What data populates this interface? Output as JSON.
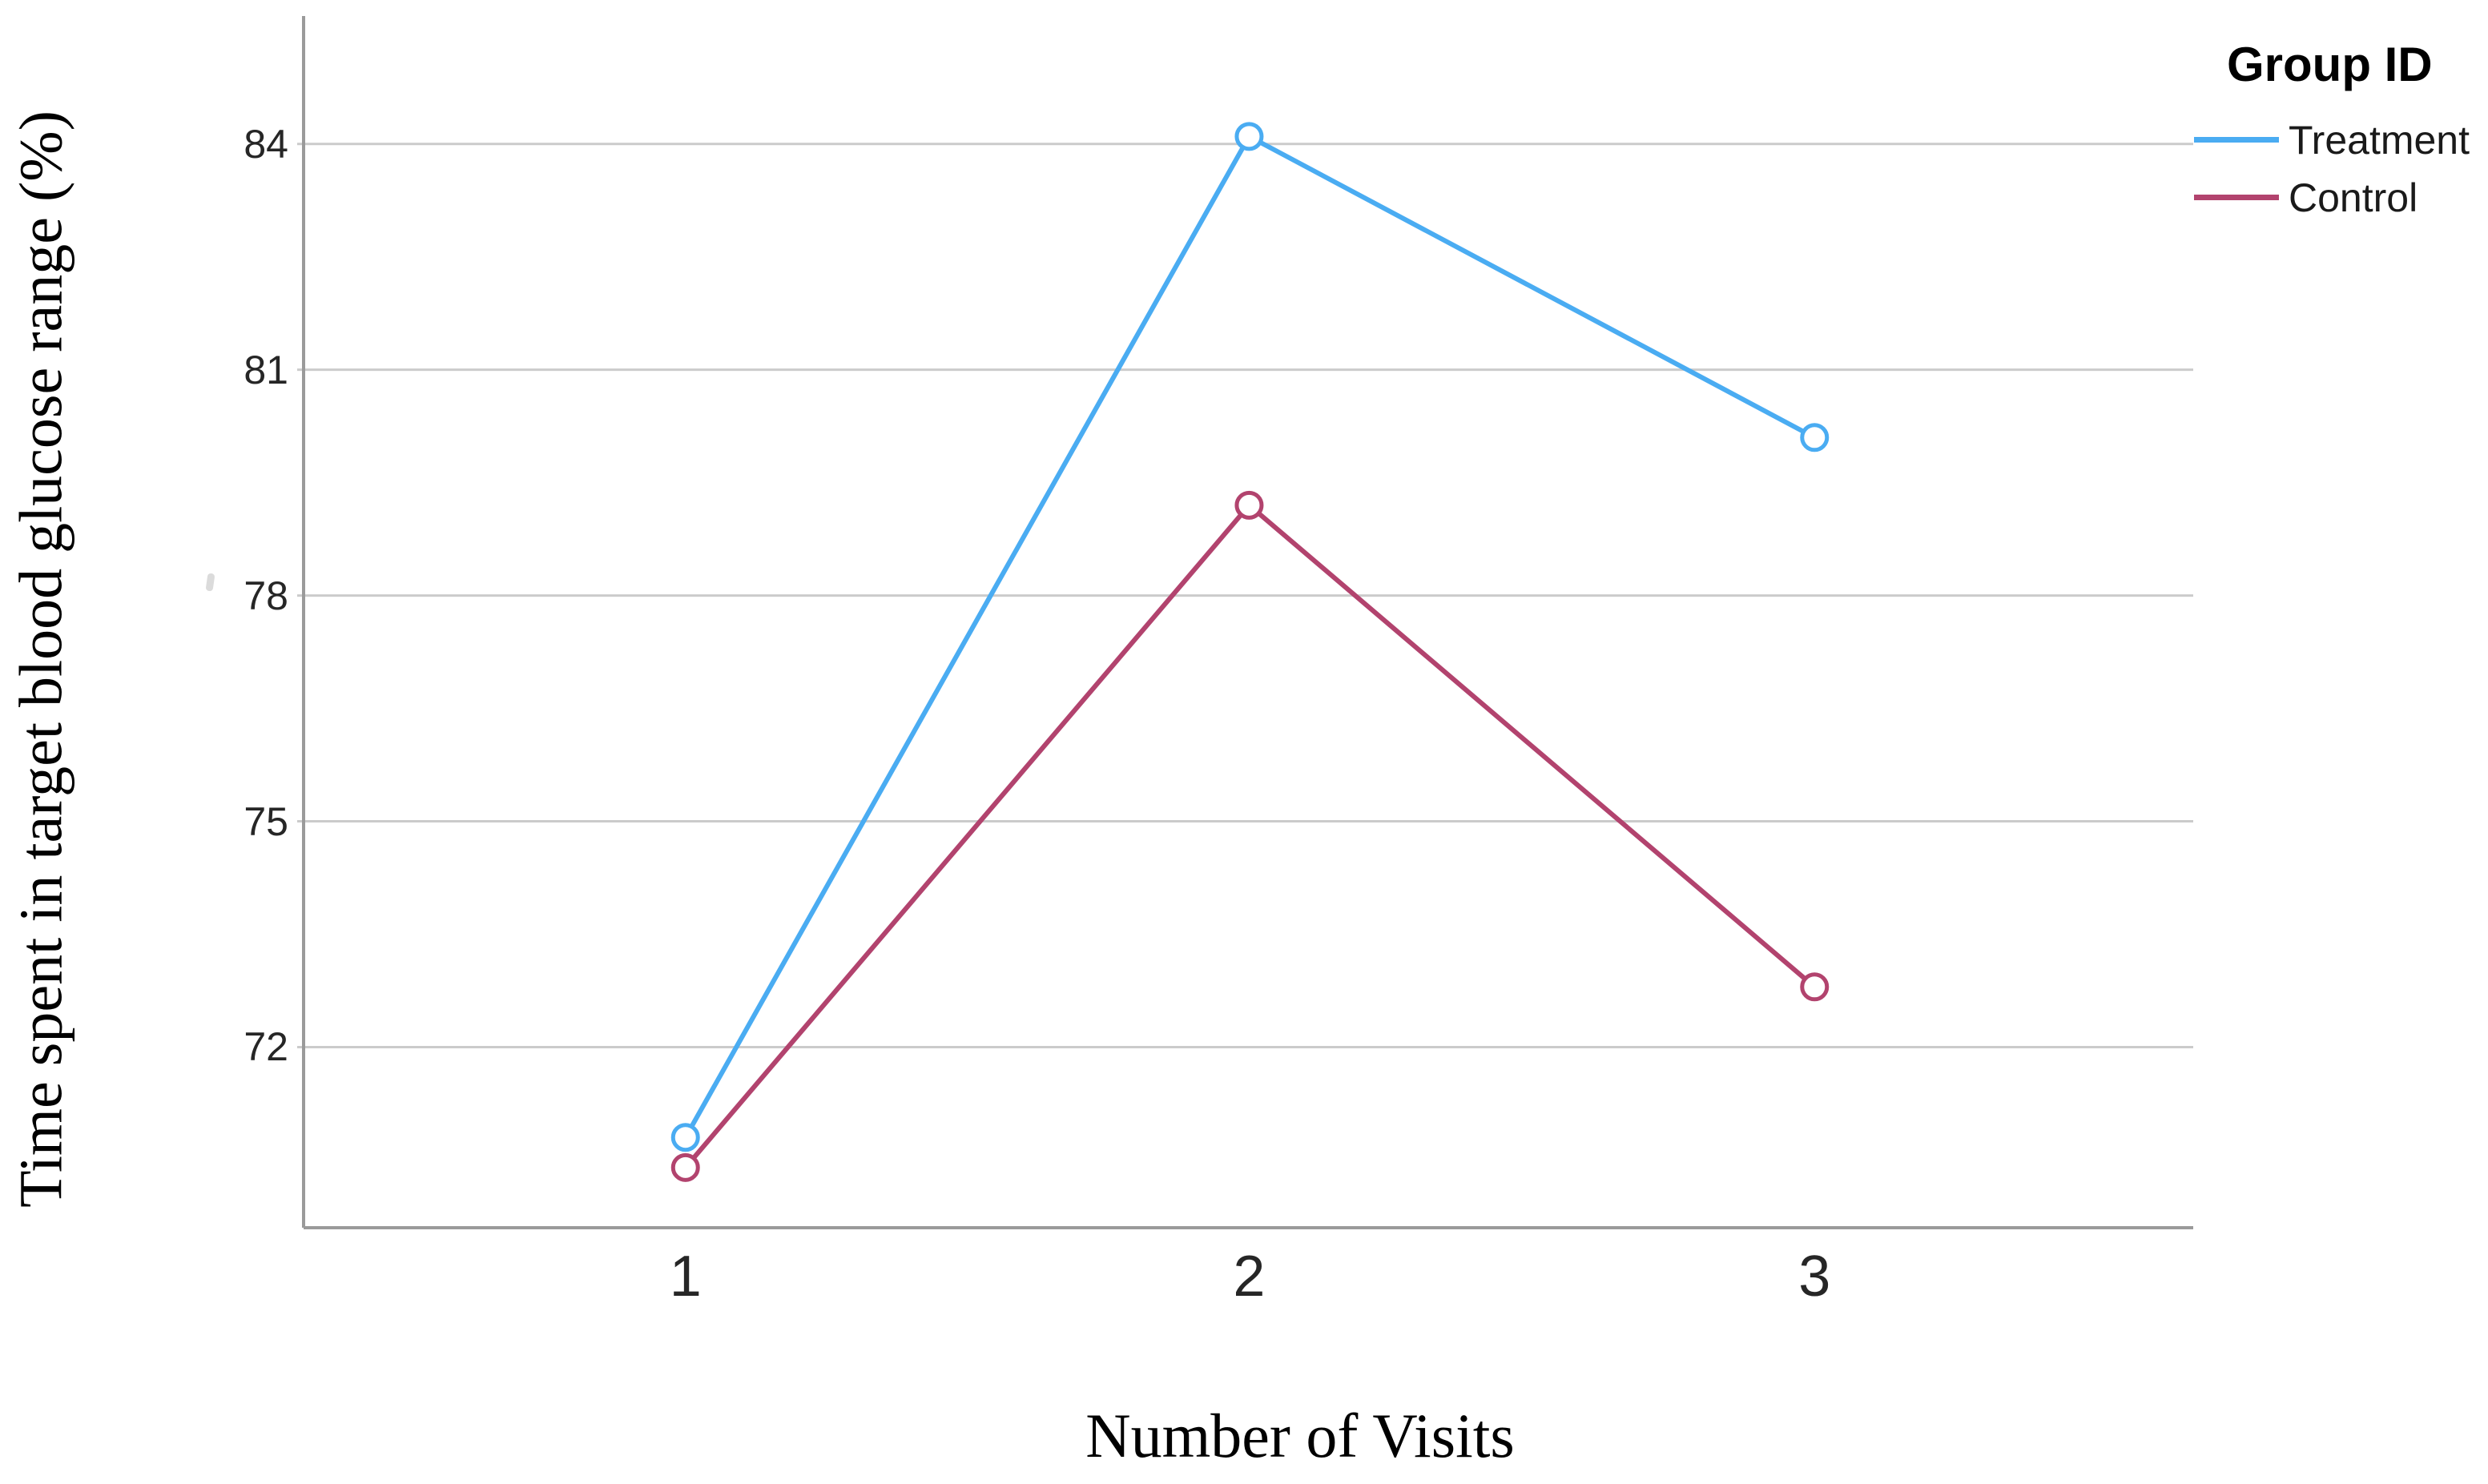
{
  "figure": {
    "background": "#ffffff",
    "y_axis_title": "Time spent in target blood glucose range (%)",
    "x_axis_title": "Number of Visits",
    "legend_title": "Group ID"
  },
  "chart_data": {
    "type": "line",
    "title": "",
    "xlabel": "Number of Visits",
    "ylabel": "Time spent in target blood glucose range (%)",
    "categories": [
      1,
      2,
      3
    ],
    "x_tick_labels": [
      "1",
      "2",
      "3"
    ],
    "series": [
      {
        "name": "Treatment",
        "color": "#4aacf2",
        "values": [
          70.8,
          84.1,
          80.1
        ]
      },
      {
        "name": "Control",
        "color": "#b2436e",
        "values": [
          70.4,
          79.2,
          72.8
        ]
      }
    ],
    "y_ticks": [
      72,
      75,
      78,
      81,
      84
    ],
    "ylim": [
      69.6,
      85.7
    ],
    "grid": "horizontal",
    "gridline_color": "#cbcbcb",
    "axis_line_color": "#9a9a9a",
    "tick_label_color": "#262626",
    "marker": "open-circle",
    "legend": {
      "title": "Group ID",
      "position": "top-right",
      "entries": [
        "Treatment",
        "Control"
      ]
    }
  }
}
